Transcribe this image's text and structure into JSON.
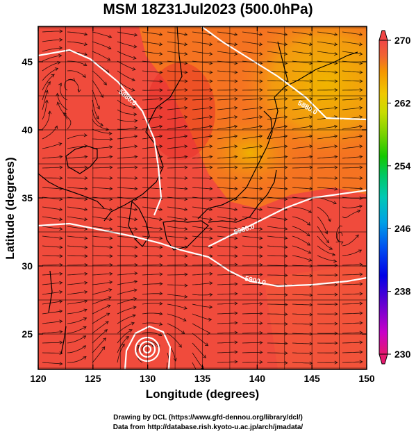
{
  "title": "MSM 18Z31Jul2023 (500.0hPa)",
  "xlabel": "Longitude (degrees)",
  "ylabel": "Latitude  (degrees)",
  "credit_line1": "Drawing by DCL (https://www.gfd-dennou.org/library/dcl/)",
  "credit_line2": "Data from http://database.rish.kyoto-u.ac.jp/arch/jmadata/",
  "map": {
    "lon_range": [
      120,
      150
    ],
    "lat_range": [
      22.4,
      47.6
    ],
    "x_ticks": [
      120,
      125,
      130,
      135,
      140,
      145,
      150
    ],
    "y_ticks": [
      25,
      30,
      35,
      40,
      45
    ],
    "grid": true
  },
  "contours": [
    {
      "label": "5880.0"
    },
    {
      "label": "5880.0"
    },
    {
      "label": "5900.0"
    },
    {
      "label": "5900.0"
    }
  ],
  "colorbar": {
    "min": 230,
    "max": 270,
    "tick_labels": [
      "270",
      "262",
      "254",
      "246",
      "238",
      "230"
    ],
    "colors": [
      "#e6196e",
      "#c800c8",
      "#5a00d2",
      "#0000e6",
      "#0050f0",
      "#00a0e6",
      "#00c8b4",
      "#00c864",
      "#14c800",
      "#78d200",
      "#c8dc00",
      "#f0c800",
      "#f59600",
      "#f06432",
      "#f04646"
    ]
  },
  "field_colors": {
    "warm": "#f04646",
    "mid": "#f5781e",
    "cool": "#f0b400",
    "contour": "#ffffff",
    "streamline": "#000000"
  }
}
